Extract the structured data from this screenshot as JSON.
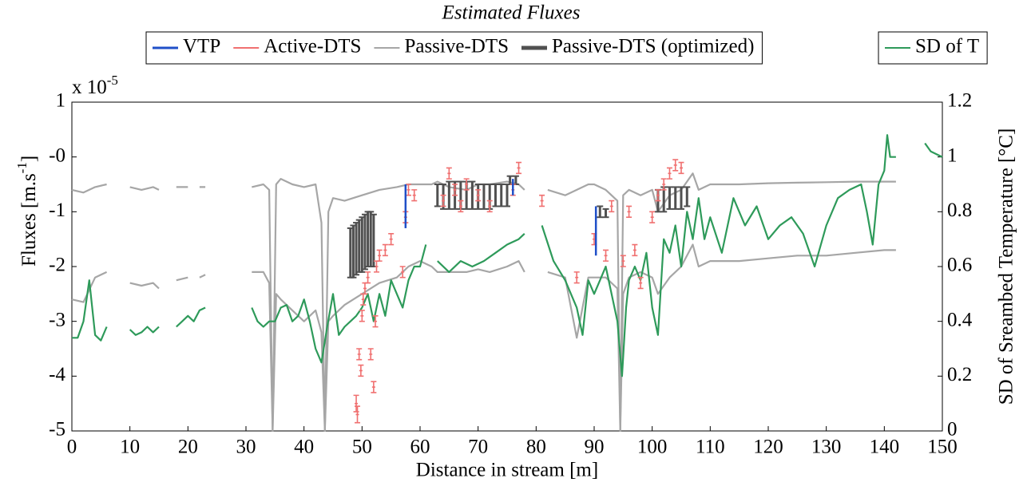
{
  "chart_data": {
    "type": "line",
    "title": "Estimated Fluxes",
    "xlabel": "Distance in stream [m]",
    "ylabel": "Fluxes [m.s",
    "ylabel_sup": "-1",
    "ylabel_end": "]",
    "y_multiplier": "x 10",
    "y_multiplier_exp": "-5",
    "y2label": "SD of Sreambed Temperature [°C]",
    "xlim": [
      0,
      150
    ],
    "xticks": [
      0,
      10,
      20,
      30,
      40,
      50,
      60,
      70,
      80,
      90,
      100,
      110,
      120,
      130,
      140,
      150
    ],
    "ylim": [
      -5,
      1
    ],
    "yticks": [
      -5,
      -4,
      -3,
      -2,
      -1,
      {
        "value": 0,
        "label": "-0"
      },
      1
    ],
    "y2lim": [
      0,
      1.2
    ],
    "y2ticks": [
      0,
      0.2,
      0.4,
      0.6,
      0.8,
      1,
      1.2
    ],
    "legend": "top",
    "series": [
      {
        "name": "VTP",
        "kind": "range",
        "color": "#1f4fc8",
        "legend_box": 1,
        "x": [
          57.5,
          76,
          90.3
        ],
        "low": [
          -1.3,
          -0.7,
          -1.8
        ],
        "high": [
          -0.5,
          -0.4,
          -0.9
        ]
      },
      {
        "name": "Active-DTS",
        "kind": "errorbar",
        "color": "#f07070",
        "legend_box": 1,
        "x": [
          49,
          49.2,
          49.5,
          49.8,
          50,
          50.2,
          50.5,
          51,
          51.5,
          52,
          52.3,
          52.5,
          53,
          54,
          55,
          57,
          57.5,
          58,
          59,
          64,
          65,
          66,
          67,
          68,
          70,
          72,
          76,
          77,
          81,
          87,
          90,
          92,
          93,
          95,
          96,
          97,
          98,
          100,
          101,
          102,
          103,
          104,
          105
        ],
        "values": [
          -4.5,
          -4.7,
          -3.6,
          -3.9,
          -2.9,
          -2.6,
          -2.4,
          -2.2,
          -3.6,
          -4.2,
          -3.0,
          -2.0,
          -1.8,
          -1.7,
          -1.5,
          -2.1,
          -1.1,
          -0.6,
          -0.7,
          -0.8,
          -0.3,
          -0.6,
          -0.9,
          -0.5,
          -0.7,
          -0.9,
          -0.6,
          -0.2,
          -0.8,
          -2.2,
          -1.5,
          -1.8,
          -0.9,
          -1.9,
          -1.0,
          -1.7,
          -2.3,
          -1.1,
          -0.7,
          -0.5,
          -0.3,
          -0.15,
          -0.2
        ],
        "errors": [
          0.15,
          0.15,
          0.1,
          0.1,
          0.1,
          0.1,
          0.1,
          0.1,
          0.1,
          0.1,
          0.1,
          0.1,
          0.1,
          0.1,
          0.1,
          0.1,
          0.1,
          0.1,
          0.1,
          0.1,
          0.1,
          0.1,
          0.1,
          0.1,
          0.1,
          0.1,
          0.1,
          0.1,
          0.1,
          0.1,
          0.1,
          0.1,
          0.1,
          0.1,
          0.1,
          0.1,
          0.1,
          0.1,
          0.1,
          0.1,
          0.1,
          0.1,
          0.1
        ]
      },
      {
        "name": "Passive-DTS",
        "kind": "line",
        "color": "#a6a6a6",
        "legend_box": 1,
        "x": [
          0,
          2,
          4,
          6,
          7,
          10,
          12,
          14,
          15,
          16,
          18,
          20,
          21,
          22,
          23,
          24,
          31,
          33,
          34,
          34.6,
          35.2,
          36,
          38,
          40,
          42,
          43,
          43.6,
          44.2,
          45,
          47,
          50,
          53,
          56,
          58,
          60,
          62,
          63,
          65,
          68,
          70,
          72,
          75,
          77,
          78,
          80,
          82,
          85,
          87,
          89,
          90,
          92,
          94,
          94.5,
          95,
          96,
          98,
          100,
          101,
          103,
          105,
          107,
          108,
          110,
          115,
          120,
          125,
          130,
          135,
          140,
          142
        ],
        "values": [
          -0.6,
          -0.65,
          -0.55,
          -0.5,
          null,
          -0.55,
          -0.6,
          -0.55,
          -0.6,
          null,
          -0.55,
          -0.55,
          null,
          -0.55,
          -0.55,
          null,
          -0.55,
          -0.5,
          -0.6,
          -5,
          -0.5,
          -0.4,
          -0.5,
          -0.55,
          -0.5,
          -1.2,
          -5,
          -1.0,
          -0.75,
          -0.8,
          -0.7,
          -0.6,
          -0.55,
          -0.5,
          -0.5,
          -0.5,
          -0.45,
          -0.55,
          -0.6,
          -0.5,
          -0.5,
          -0.45,
          -0.5,
          -0.6,
          null,
          -0.6,
          -0.7,
          -0.6,
          -0.5,
          -0.5,
          -0.6,
          -0.8,
          -5,
          -0.7,
          -0.6,
          -0.7,
          -0.6,
          -1.0,
          -0.7,
          -0.6,
          -0.3,
          -0.6,
          -0.5,
          -0.5,
          -0.48,
          -0.47,
          -0.46,
          -0.45,
          -0.45,
          -0.45
        ],
        "values_lower": [
          -2.6,
          -2.65,
          -2.2,
          -2.1,
          null,
          -2.3,
          -2.35,
          -2.3,
          -2.4,
          null,
          -2.25,
          -2.2,
          null,
          -2.2,
          -2.15,
          null,
          -2.1,
          -2.1,
          -2.3,
          -5,
          -2.5,
          -2.6,
          -2.8,
          -3.0,
          -2.8,
          -3.2,
          -5,
          -3.0,
          -2.9,
          -2.7,
          -2.5,
          -2.3,
          -2.2,
          -2.0,
          -1.9,
          -2.0,
          -2.1,
          -2.1,
          -2.1,
          -2.05,
          -2.1,
          -2.0,
          -1.9,
          -2.1,
          null,
          -2.1,
          -2.2,
          -3.3,
          -2.2,
          -2.2,
          -2.2,
          -2.4,
          -5,
          -2.5,
          -2.2,
          -2.1,
          -2.2,
          -2.5,
          -2.2,
          -2.0,
          -1.6,
          -2.0,
          -1.9,
          -1.9,
          -1.85,
          -1.8,
          -1.8,
          -1.75,
          -1.7,
          -1.7
        ]
      },
      {
        "name": "Passive-DTS (optimized)",
        "kind": "range",
        "color": "#505050",
        "legend_box": 1,
        "x": [
          48,
          48.5,
          49,
          49.5,
          50,
          50.5,
          51,
          51.5,
          52,
          63,
          64,
          65,
          66,
          67,
          68,
          69,
          70,
          71,
          72,
          73,
          74,
          75,
          75.5,
          76.5,
          91,
          92,
          101,
          102,
          103,
          104,
          105,
          106
        ],
        "low": [
          -2.2,
          -2.2,
          -2.15,
          -2.1,
          -2.1,
          -2.05,
          -2.0,
          -2.0,
          -2.0,
          -0.9,
          -0.95,
          -0.95,
          -0.95,
          -0.95,
          -0.95,
          -0.95,
          -0.95,
          -0.95,
          -0.95,
          -0.9,
          -0.9,
          -0.9,
          -0.5,
          -0.5,
          -1.1,
          -1.1,
          -1.0,
          -1.0,
          -0.95,
          -0.95,
          -0.95,
          -0.9
        ],
        "high": [
          -1.3,
          -1.25,
          -1.2,
          -1.15,
          -1.1,
          -1.05,
          -1.0,
          -1.0,
          -1.05,
          -0.5,
          -0.5,
          -0.45,
          -0.45,
          -0.45,
          -0.45,
          -0.45,
          -0.5,
          -0.5,
          -0.5,
          -0.5,
          -0.5,
          -0.5,
          -0.35,
          -0.35,
          -0.9,
          -0.95,
          -0.6,
          -0.55,
          -0.55,
          -0.55,
          -0.55,
          -0.55
        ]
      },
      {
        "name": "SD of T",
        "kind": "line",
        "axis": "y2",
        "color": "#2e9a5a",
        "legend_box": 2,
        "x": [
          0,
          1,
          2,
          3,
          4,
          5,
          6,
          7,
          10,
          11,
          12,
          13,
          14,
          15,
          16,
          18,
          19,
          20,
          21,
          22,
          23,
          24,
          31,
          32,
          33,
          34,
          35,
          36,
          37,
          38,
          39,
          40,
          41,
          42,
          43,
          44,
          45,
          46,
          47,
          48,
          49,
          50,
          51,
          52,
          53,
          54,
          55,
          56,
          57,
          58,
          59,
          60,
          61,
          62,
          63,
          65,
          67,
          69,
          71,
          73,
          75,
          77,
          78,
          79,
          81,
          83,
          85,
          87,
          88,
          89,
          90,
          91,
          92,
          93,
          94,
          94.8,
          95.5,
          96,
          97,
          98,
          99,
          100,
          101,
          102,
          103,
          104,
          105,
          106,
          107,
          108,
          109,
          110,
          112,
          114,
          116,
          118,
          120,
          122,
          124,
          126,
          128,
          130,
          132,
          134,
          136,
          137,
          138,
          139,
          140,
          140.5,
          141,
          142,
          143,
          147,
          148,
          149,
          150
        ],
        "values": [
          0.34,
          0.34,
          0.4,
          0.55,
          0.35,
          0.33,
          0.38,
          null,
          0.37,
          0.35,
          0.36,
          0.38,
          0.36,
          0.38,
          null,
          0.38,
          0.4,
          0.42,
          0.4,
          0.44,
          0.45,
          null,
          0.45,
          0.4,
          0.38,
          0.4,
          0.4,
          0.45,
          0.46,
          0.4,
          0.42,
          0.48,
          0.4,
          0.3,
          0.25,
          0.38,
          0.5,
          0.35,
          0.38,
          0.4,
          0.42,
          0.45,
          0.5,
          0.4,
          0.5,
          0.42,
          0.55,
          0.5,
          0.45,
          0.55,
          0.6,
          0.6,
          0.68,
          null,
          0.62,
          0.58,
          0.62,
          0.6,
          0.62,
          0.65,
          0.68,
          0.7,
          0.72,
          null,
          0.75,
          0.62,
          0.55,
          0.45,
          0.35,
          0.55,
          0.5,
          0.55,
          0.6,
          0.5,
          0.4,
          0.2,
          0.45,
          0.55,
          0.6,
          0.55,
          0.65,
          0.45,
          0.35,
          0.7,
          0.65,
          0.75,
          0.6,
          0.8,
          0.7,
          0.85,
          0.7,
          0.78,
          0.65,
          0.85,
          0.75,
          0.82,
          0.7,
          0.75,
          0.78,
          0.72,
          0.6,
          0.75,
          0.85,
          0.88,
          0.9,
          0.8,
          0.68,
          0.9,
          0.95,
          1.08,
          1.0,
          1.0,
          null,
          1.05,
          1.02,
          1.01,
          1.0
        ]
      }
    ]
  }
}
